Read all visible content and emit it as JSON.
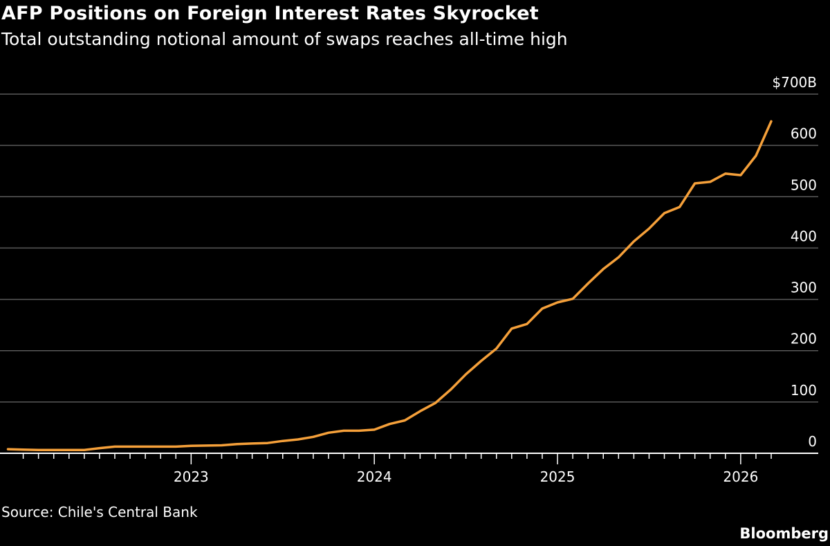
{
  "header": {
    "title": "AFP Positions on Foreign Interest Rates Skyrocket",
    "subtitle": "Total outstanding notional amount of swaps reaches all-time high"
  },
  "footer": {
    "source": "Source: Chile's Central Bank",
    "logo": "Bloomberg"
  },
  "chart_data": {
    "type": "line",
    "title": "AFP Positions on Foreign Interest Rates Skyrocket",
    "subtitle": "Total outstanding notional amount of swaps reaches all-time high",
    "xlabel": "",
    "ylabel": "",
    "x_frequency": "monthly",
    "x": [
      "2022-01",
      "2022-02",
      "2022-03",
      "2022-04",
      "2022-05",
      "2022-06",
      "2022-07",
      "2022-08",
      "2022-09",
      "2022-10",
      "2022-11",
      "2022-12",
      "2023-01",
      "2023-02",
      "2023-03",
      "2023-04",
      "2023-05",
      "2023-06",
      "2023-07",
      "2023-08",
      "2023-09",
      "2023-10",
      "2023-11",
      "2023-12",
      "2024-01",
      "2024-02",
      "2024-03",
      "2024-04",
      "2024-05",
      "2024-06",
      "2024-07",
      "2024-08",
      "2024-09",
      "2024-10",
      "2024-11",
      "2024-12",
      "2025-01",
      "2025-02",
      "2025-03",
      "2025-04",
      "2025-05",
      "2025-06",
      "2025-07",
      "2025-08",
      "2025-09",
      "2025-10",
      "2025-11",
      "2025-12",
      "2026-01",
      "2026-02",
      "2026-03"
    ],
    "series": [
      {
        "color": "#f5a03a",
        "values": [
          8,
          7,
          6.5,
          6.5,
          6.5,
          6.5,
          10,
          13,
          13,
          13,
          13,
          13,
          14.5,
          15,
          15.5,
          18,
          19,
          20,
          24,
          27,
          32,
          40,
          44,
          44,
          46,
          57,
          64,
          82,
          98,
          124,
          154,
          180,
          204,
          243,
          252,
          282,
          294,
          301,
          331,
          359,
          382,
          413,
          438,
          468,
          480,
          526,
          529,
          545,
          542,
          580,
          647
        ]
      }
    ],
    "ylim": [
      0,
      700
    ],
    "y_ticks": [
      0,
      100,
      200,
      300,
      400,
      500,
      600,
      700
    ],
    "y_tick_labels": [
      "0",
      "100",
      "200",
      "300",
      "400",
      "500",
      "600",
      "$700B"
    ],
    "x_tick_labels": [
      "2023",
      "2024",
      "2025",
      "2026"
    ],
    "grid": true,
    "y_axis_position": "right",
    "legend": "none",
    "colors": {
      "background": "#000000",
      "line": "#f5a03a",
      "grid": "#5a5a5a",
      "text": "#ffffff"
    }
  }
}
